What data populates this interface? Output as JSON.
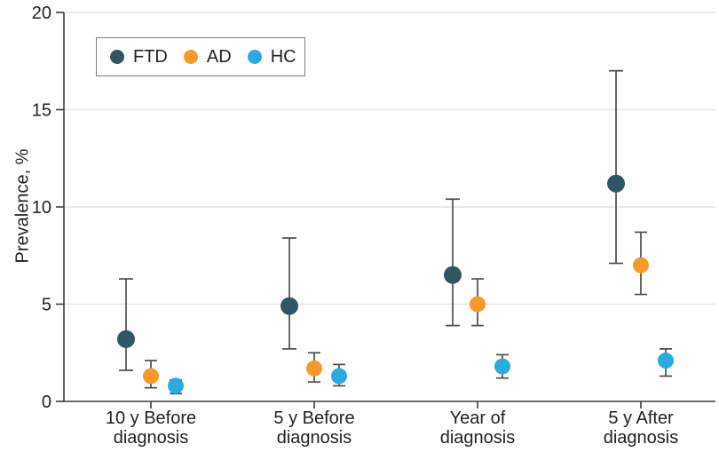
{
  "chart_data": {
    "type": "scatter",
    "title": "",
    "xlabel": "",
    "ylabel": "Prevalence, %",
    "ylim": [
      0,
      20
    ],
    "yticks": [
      0,
      5,
      10,
      15,
      20
    ],
    "grid": "horizontal light gray lines at 5, 10, 15, 20",
    "legend_position": "top-left inside plot, boxed",
    "marker": "filled circle with vertical error bars and end caps",
    "categories": [
      [
        "10 y Before",
        "diagnosis"
      ],
      [
        "5 y Before",
        "diagnosis"
      ],
      [
        "Year of",
        "diagnosis"
      ],
      [
        "5 y After",
        "diagnosis"
      ]
    ],
    "series": [
      {
        "name": "FTD",
        "color": "#2F5662",
        "values": [
          3.2,
          4.9,
          6.5,
          11.2
        ],
        "ci_low": [
          1.6,
          2.7,
          3.9,
          7.1
        ],
        "ci_high": [
          6.3,
          8.4,
          10.4,
          17.0
        ]
      },
      {
        "name": "AD",
        "color": "#F89929",
        "values": [
          1.3,
          1.7,
          5.0,
          7.0
        ],
        "ci_low": [
          0.7,
          1.0,
          3.9,
          5.5
        ],
        "ci_high": [
          2.1,
          2.5,
          6.3,
          8.7
        ]
      },
      {
        "name": "HC",
        "color": "#29ABE2",
        "values": [
          0.8,
          1.3,
          1.8,
          2.1
        ],
        "ci_low": [
          0.4,
          0.8,
          1.2,
          1.3
        ],
        "ci_high": [
          1.1,
          1.9,
          2.4,
          2.7
        ]
      }
    ],
    "axis_colors": {
      "axis_line": "#3d3d3d",
      "error_bar": "#4d4d4d",
      "grid_line": "#e4e4e4",
      "text": "#222222"
    }
  }
}
